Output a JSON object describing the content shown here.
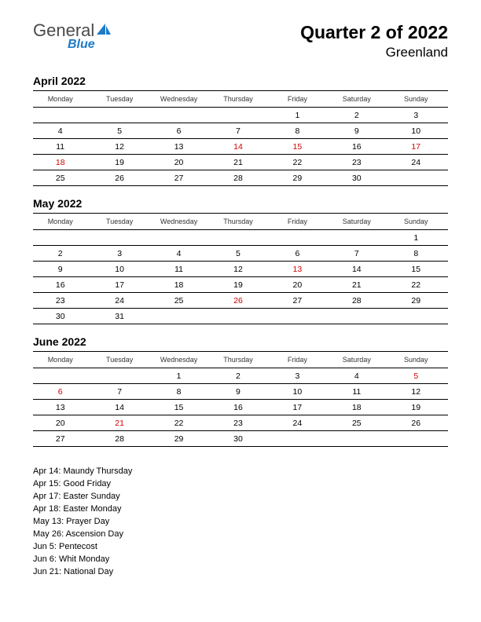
{
  "logo": {
    "text1": "General",
    "text2": "Blue"
  },
  "header": {
    "title": "Quarter 2 of 2022",
    "subtitle": "Greenland"
  },
  "weekdays": [
    "Monday",
    "Tuesday",
    "Wednesday",
    "Thursday",
    "Friday",
    "Saturday",
    "Sunday"
  ],
  "colors": {
    "holiday": "#d40000",
    "text": "#000000",
    "logo_gray": "#4a4a4a",
    "logo_blue": "#1e7bc8",
    "background": "#ffffff"
  },
  "months": [
    {
      "title": "April 2022",
      "weeks": [
        [
          {
            "d": ""
          },
          {
            "d": ""
          },
          {
            "d": ""
          },
          {
            "d": ""
          },
          {
            "d": "1"
          },
          {
            "d": "2"
          },
          {
            "d": "3"
          }
        ],
        [
          {
            "d": "4"
          },
          {
            "d": "5"
          },
          {
            "d": "6"
          },
          {
            "d": "7"
          },
          {
            "d": "8"
          },
          {
            "d": "9"
          },
          {
            "d": "10"
          }
        ],
        [
          {
            "d": "11"
          },
          {
            "d": "12"
          },
          {
            "d": "13"
          },
          {
            "d": "14",
            "h": true
          },
          {
            "d": "15",
            "h": true
          },
          {
            "d": "16"
          },
          {
            "d": "17",
            "h": true
          }
        ],
        [
          {
            "d": "18",
            "h": true
          },
          {
            "d": "19"
          },
          {
            "d": "20"
          },
          {
            "d": "21"
          },
          {
            "d": "22"
          },
          {
            "d": "23"
          },
          {
            "d": "24"
          }
        ],
        [
          {
            "d": "25"
          },
          {
            "d": "26"
          },
          {
            "d": "27"
          },
          {
            "d": "28"
          },
          {
            "d": "29"
          },
          {
            "d": "30"
          },
          {
            "d": ""
          }
        ]
      ]
    },
    {
      "title": "May 2022",
      "weeks": [
        [
          {
            "d": ""
          },
          {
            "d": ""
          },
          {
            "d": ""
          },
          {
            "d": ""
          },
          {
            "d": ""
          },
          {
            "d": ""
          },
          {
            "d": "1"
          }
        ],
        [
          {
            "d": "2"
          },
          {
            "d": "3"
          },
          {
            "d": "4"
          },
          {
            "d": "5"
          },
          {
            "d": "6"
          },
          {
            "d": "7"
          },
          {
            "d": "8"
          }
        ],
        [
          {
            "d": "9"
          },
          {
            "d": "10"
          },
          {
            "d": "11"
          },
          {
            "d": "12"
          },
          {
            "d": "13",
            "h": true
          },
          {
            "d": "14"
          },
          {
            "d": "15"
          }
        ],
        [
          {
            "d": "16"
          },
          {
            "d": "17"
          },
          {
            "d": "18"
          },
          {
            "d": "19"
          },
          {
            "d": "20"
          },
          {
            "d": "21"
          },
          {
            "d": "22"
          }
        ],
        [
          {
            "d": "23"
          },
          {
            "d": "24"
          },
          {
            "d": "25"
          },
          {
            "d": "26",
            "h": true
          },
          {
            "d": "27"
          },
          {
            "d": "28"
          },
          {
            "d": "29"
          }
        ],
        [
          {
            "d": "30"
          },
          {
            "d": "31"
          },
          {
            "d": ""
          },
          {
            "d": ""
          },
          {
            "d": ""
          },
          {
            "d": ""
          },
          {
            "d": ""
          }
        ]
      ]
    },
    {
      "title": "June 2022",
      "weeks": [
        [
          {
            "d": ""
          },
          {
            "d": ""
          },
          {
            "d": "1"
          },
          {
            "d": "2"
          },
          {
            "d": "3"
          },
          {
            "d": "4"
          },
          {
            "d": "5",
            "h": true
          }
        ],
        [
          {
            "d": "6",
            "h": true
          },
          {
            "d": "7"
          },
          {
            "d": "8"
          },
          {
            "d": "9"
          },
          {
            "d": "10"
          },
          {
            "d": "11"
          },
          {
            "d": "12"
          }
        ],
        [
          {
            "d": "13"
          },
          {
            "d": "14"
          },
          {
            "d": "15"
          },
          {
            "d": "16"
          },
          {
            "d": "17"
          },
          {
            "d": "18"
          },
          {
            "d": "19"
          }
        ],
        [
          {
            "d": "20"
          },
          {
            "d": "21",
            "h": true
          },
          {
            "d": "22"
          },
          {
            "d": "23"
          },
          {
            "d": "24"
          },
          {
            "d": "25"
          },
          {
            "d": "26"
          }
        ],
        [
          {
            "d": "27"
          },
          {
            "d": "28"
          },
          {
            "d": "29"
          },
          {
            "d": "30"
          },
          {
            "d": ""
          },
          {
            "d": ""
          },
          {
            "d": ""
          }
        ]
      ]
    }
  ],
  "holiday_list": [
    "Apr 14: Maundy Thursday",
    "Apr 15: Good Friday",
    "Apr 17: Easter Sunday",
    "Apr 18: Easter Monday",
    "May 13: Prayer Day",
    "May 26: Ascension Day",
    "Jun 5: Pentecost",
    "Jun 6: Whit Monday",
    "Jun 21: National Day"
  ]
}
